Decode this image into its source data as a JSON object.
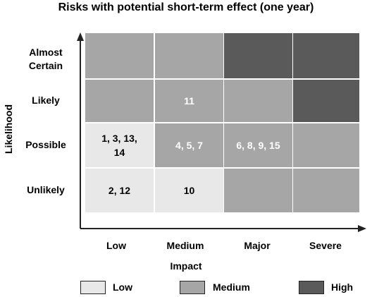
{
  "title": "Risks with potential short-term effect (one year)",
  "y_axis_label": "Likelihood",
  "x_axis_label": "Impact",
  "rows": [
    "Almost Certain",
    "Likely",
    "Possible",
    "Unlikely"
  ],
  "columns": [
    "Low",
    "Medium",
    "Major",
    "Severe"
  ],
  "colors": {
    "low": "#e8e8e8",
    "medium": "#a6a6a6",
    "high": "#5a5a5a"
  },
  "grid": [
    [
      {
        "level": "medium",
        "text": ""
      },
      {
        "level": "medium",
        "text": ""
      },
      {
        "level": "high",
        "text": ""
      },
      {
        "level": "high",
        "text": ""
      }
    ],
    [
      {
        "level": "medium",
        "text": ""
      },
      {
        "level": "medium",
        "text": "11"
      },
      {
        "level": "medium",
        "text": ""
      },
      {
        "level": "high",
        "text": ""
      }
    ],
    [
      {
        "level": "low",
        "text": "1, 3, 13, 14"
      },
      {
        "level": "medium",
        "text": "4, 5, 7"
      },
      {
        "level": "medium",
        "text": "6, 8, 9, 15"
      },
      {
        "level": "medium",
        "text": ""
      }
    ],
    [
      {
        "level": "low",
        "text": "2, 12"
      },
      {
        "level": "low",
        "text": "10"
      },
      {
        "level": "medium",
        "text": ""
      },
      {
        "level": "medium",
        "text": ""
      }
    ]
  ],
  "legend": [
    {
      "label": "Low",
      "level": "low"
    },
    {
      "label": "Medium",
      "level": "medium"
    },
    {
      "label": "High",
      "level": "high"
    }
  ]
}
